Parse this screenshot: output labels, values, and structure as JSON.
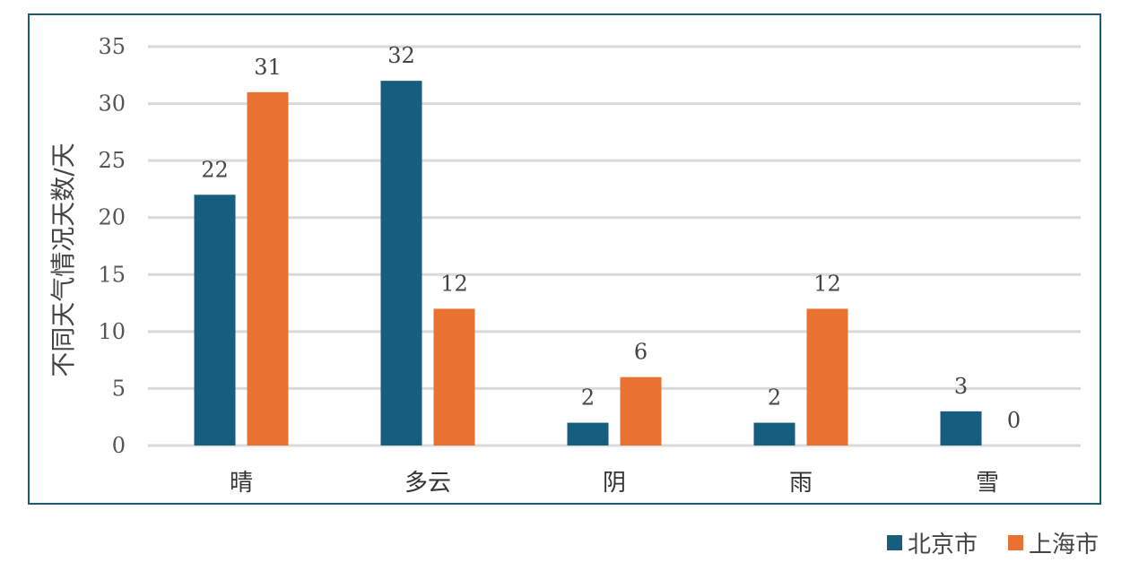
{
  "chart_data": {
    "type": "bar",
    "title": "",
    "xlabel": "",
    "ylabel": "不同天气情况天数/天",
    "categories": [
      "晴",
      "多云",
      "阴",
      "雨",
      "雪"
    ],
    "series": [
      {
        "name": "北京市",
        "values": [
          22,
          32,
          2,
          2,
          3
        ],
        "color": "#165e7f"
      },
      {
        "name": "上海市",
        "values": [
          31,
          12,
          6,
          12,
          0
        ],
        "color": "#e97132"
      }
    ],
    "yticks": [
      "0",
      "5",
      "10",
      "15",
      "20",
      "25",
      "30",
      "35"
    ],
    "ylim": [
      0,
      35
    ],
    "grid": true,
    "legend_position": "bottom-right",
    "frame_color": "#1b5c73",
    "grid_color": "#d9d9d9"
  }
}
